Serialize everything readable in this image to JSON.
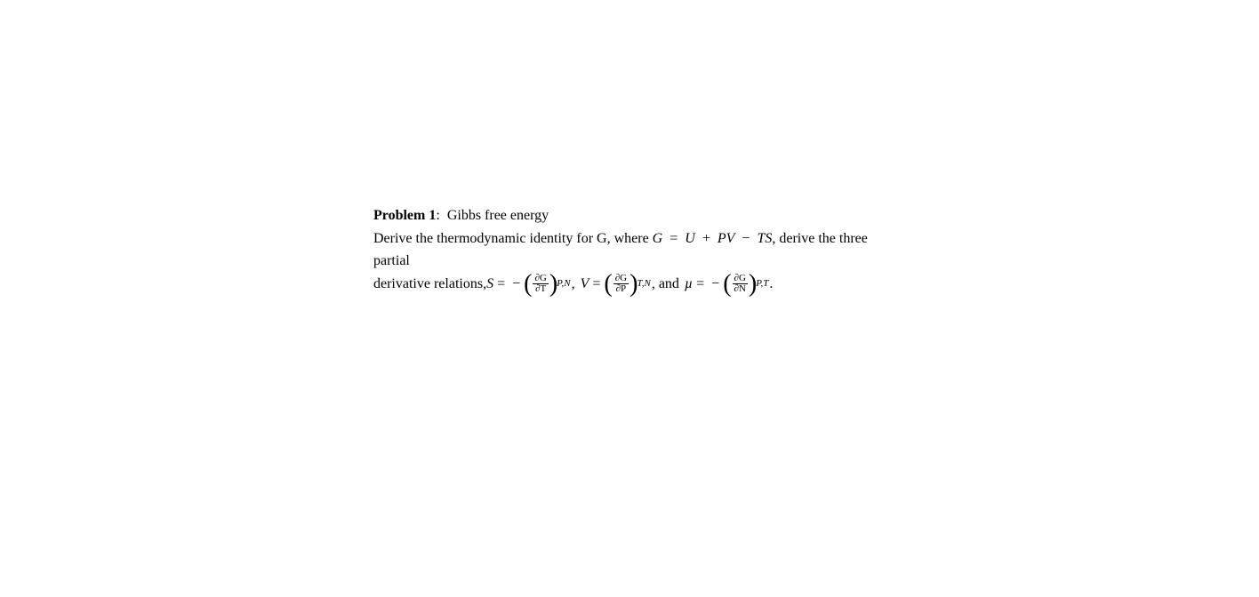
{
  "problem": {
    "label": "Problem 1",
    "sep": ":",
    "title": "Gibbs free energy",
    "line_a": "Derive the thermodynamic identity for G, where ",
    "def_lhs": "G",
    "eq": "=",
    "def_U": "U",
    "plus": "+",
    "def_PV": "PV",
    "minus": "−",
    "def_TS": "TS",
    "after_def": ", derive the three partial",
    "line_b_lead": "derivative relations, ",
    "S": "S",
    "V": "V",
    "mu": "µ",
    "neg": "−",
    "dG": "∂G",
    "dT": "∂T",
    "dP": "∂P",
    "dN": "∂N",
    "sub_PN": "P,N",
    "sub_TN": "T,N",
    "sub_PT": "P,T",
    "comma_and": ", and",
    "comma": " ,",
    "comma2": ",",
    "period": "."
  }
}
